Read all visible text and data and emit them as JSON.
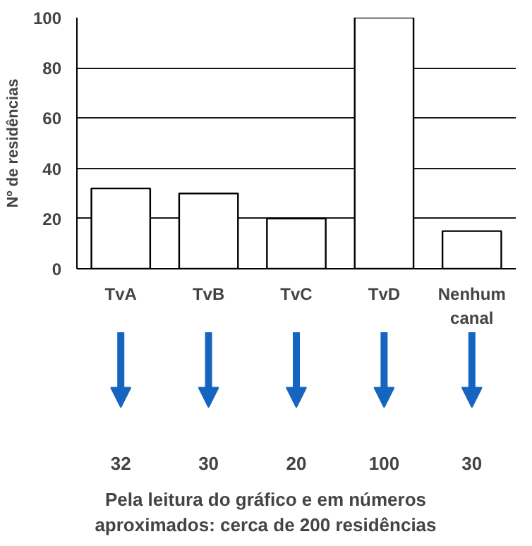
{
  "chart_data": {
    "type": "bar",
    "ylabel": "Nº de residências",
    "categories": [
      "TvA",
      "TvB",
      "TvC",
      "TvD",
      "Nenhum canal"
    ],
    "values": [
      32,
      30,
      20,
      100,
      15
    ],
    "color": "#ffffff",
    "ylim": [
      0,
      100
    ],
    "yticks": [
      0,
      20,
      40,
      60,
      80,
      100
    ],
    "grid": "y",
    "annotations": [
      "32",
      "30",
      "20",
      "100",
      "30",
      "Pela leitura do gráfico e em números aproximados: cerca de 200 residências"
    ]
  }
}
